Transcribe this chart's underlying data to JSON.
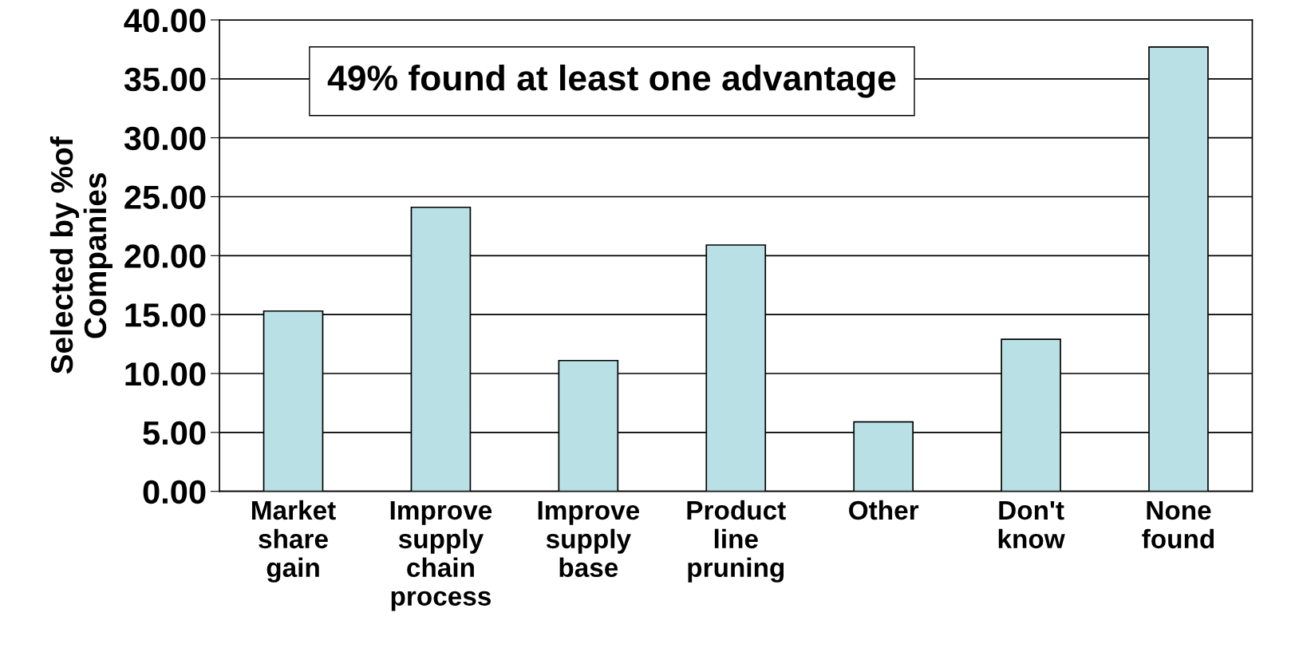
{
  "chart_data": {
    "type": "bar",
    "ylabel": "Selected by %of\nCompanies",
    "categories": [
      "Market\nshare\ngain",
      "Improve\nsupply\nchain\nprocess",
      "Improve\nsupply\nbase",
      "Product\nline\npruning",
      "Other",
      "Don't\nknow",
      "None\nfound"
    ],
    "values": [
      15.3,
      24.1,
      11.1,
      20.9,
      5.9,
      12.9,
      37.7
    ],
    "color": "#b9e0e4",
    "ylim": [
      0,
      40
    ],
    "yticks": [
      {
        "value": 0,
        "label": "0.00"
      },
      {
        "value": 5,
        "label": "5.00"
      },
      {
        "value": 10,
        "label": "10.00"
      },
      {
        "value": 15,
        "label": "15.00"
      },
      {
        "value": 20,
        "label": "20.00"
      },
      {
        "value": 25,
        "label": "25.00"
      },
      {
        "value": 30,
        "label": "30.00"
      },
      {
        "value": 35,
        "label": "35.00"
      },
      {
        "value": 40,
        "label": "40.00"
      }
    ],
    "grid": "y",
    "annotations": [
      "49% found at least one advantage"
    ]
  }
}
